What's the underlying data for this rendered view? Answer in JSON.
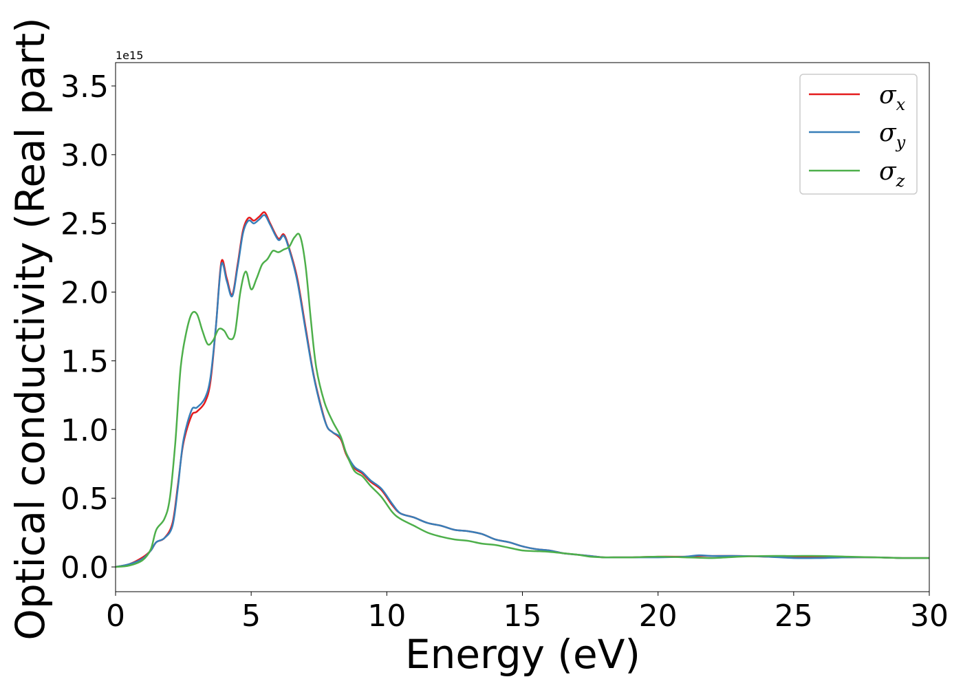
{
  "chart_data": {
    "type": "line",
    "xlabel": "Energy (eV)",
    "ylabel": "Optical conductivity (Real part)",
    "y_offset_label": "1e15",
    "y_multiplier": 1000000000000000.0,
    "xlim": [
      0,
      30
    ],
    "ylim": [
      -0.18,
      3.67
    ],
    "x_ticks": [
      0,
      5,
      10,
      15,
      20,
      25,
      30
    ],
    "x_tick_labels": [
      "0",
      "5",
      "10",
      "15",
      "20",
      "25",
      "30"
    ],
    "y_ticks": [
      0.0,
      0.5,
      1.0,
      1.5,
      2.0,
      2.5,
      3.0,
      3.5
    ],
    "y_tick_labels": [
      "0.0",
      "0.5",
      "1.0",
      "1.5",
      "2.0",
      "2.5",
      "3.0",
      "3.5"
    ],
    "grid": false,
    "legend_position": "top-right",
    "series": [
      {
        "name": "σx",
        "base": "σ",
        "sub": "x",
        "color": "#e41a1c",
        "points": [
          [
            0,
            0
          ],
          [
            0.5,
            0.02
          ],
          [
            1.0,
            0.07
          ],
          [
            1.3,
            0.12
          ],
          [
            1.5,
            0.18
          ],
          [
            1.8,
            0.21
          ],
          [
            2.1,
            0.32
          ],
          [
            2.3,
            0.6
          ],
          [
            2.5,
            0.9
          ],
          [
            2.8,
            1.1
          ],
          [
            3.0,
            1.13
          ],
          [
            3.3,
            1.2
          ],
          [
            3.5,
            1.35
          ],
          [
            3.7,
            1.75
          ],
          [
            3.9,
            2.22
          ],
          [
            4.1,
            2.1
          ],
          [
            4.3,
            1.98
          ],
          [
            4.5,
            2.2
          ],
          [
            4.7,
            2.45
          ],
          [
            4.9,
            2.54
          ],
          [
            5.1,
            2.52
          ],
          [
            5.3,
            2.55
          ],
          [
            5.5,
            2.58
          ],
          [
            5.7,
            2.5
          ],
          [
            6.0,
            2.39
          ],
          [
            6.2,
            2.42
          ],
          [
            6.4,
            2.32
          ],
          [
            6.7,
            2.1
          ],
          [
            7.0,
            1.75
          ],
          [
            7.3,
            1.4
          ],
          [
            7.6,
            1.15
          ],
          [
            7.8,
            1.02
          ],
          [
            8.0,
            0.98
          ],
          [
            8.3,
            0.93
          ],
          [
            8.5,
            0.82
          ],
          [
            8.8,
            0.72
          ],
          [
            9.1,
            0.68
          ],
          [
            9.4,
            0.62
          ],
          [
            9.8,
            0.56
          ],
          [
            10.2,
            0.45
          ],
          [
            10.5,
            0.39
          ],
          [
            11.0,
            0.36
          ],
          [
            11.5,
            0.32
          ],
          [
            12.0,
            0.3
          ],
          [
            12.5,
            0.27
          ],
          [
            13.0,
            0.26
          ],
          [
            13.5,
            0.24
          ],
          [
            14.0,
            0.2
          ],
          [
            14.5,
            0.18
          ],
          [
            15.0,
            0.15
          ],
          [
            15.5,
            0.13
          ],
          [
            16.0,
            0.12
          ],
          [
            16.5,
            0.1
          ],
          [
            17.0,
            0.09
          ],
          [
            17.5,
            0.08
          ],
          [
            18.0,
            0.07
          ],
          [
            18.5,
            0.07
          ],
          [
            19.0,
            0.07
          ],
          [
            20.0,
            0.075
          ],
          [
            21.0,
            0.075
          ],
          [
            21.5,
            0.08
          ],
          [
            22.0,
            0.08
          ],
          [
            23.0,
            0.08
          ],
          [
            24.0,
            0.075
          ],
          [
            25.0,
            0.07
          ],
          [
            26.0,
            0.07
          ],
          [
            27.0,
            0.07
          ],
          [
            28.0,
            0.07
          ],
          [
            29.0,
            0.065
          ],
          [
            30.0,
            0.065
          ]
        ]
      },
      {
        "name": "σy",
        "base": "σ",
        "sub": "y",
        "color": "#377eb8",
        "points": [
          [
            0,
            0
          ],
          [
            0.5,
            0.02
          ],
          [
            1.0,
            0.06
          ],
          [
            1.3,
            0.12
          ],
          [
            1.5,
            0.18
          ],
          [
            1.8,
            0.21
          ],
          [
            2.1,
            0.3
          ],
          [
            2.3,
            0.58
          ],
          [
            2.5,
            0.92
          ],
          [
            2.8,
            1.14
          ],
          [
            3.0,
            1.16
          ],
          [
            3.3,
            1.23
          ],
          [
            3.5,
            1.38
          ],
          [
            3.7,
            1.75
          ],
          [
            3.9,
            2.2
          ],
          [
            4.1,
            2.08
          ],
          [
            4.3,
            1.97
          ],
          [
            4.5,
            2.18
          ],
          [
            4.7,
            2.43
          ],
          [
            4.9,
            2.52
          ],
          [
            5.1,
            2.5
          ],
          [
            5.3,
            2.53
          ],
          [
            5.5,
            2.56
          ],
          [
            5.7,
            2.49
          ],
          [
            6.0,
            2.38
          ],
          [
            6.2,
            2.41
          ],
          [
            6.4,
            2.31
          ],
          [
            6.7,
            2.08
          ],
          [
            7.0,
            1.73
          ],
          [
            7.3,
            1.39
          ],
          [
            7.6,
            1.14
          ],
          [
            7.8,
            1.02
          ],
          [
            8.0,
            0.98
          ],
          [
            8.3,
            0.94
          ],
          [
            8.5,
            0.83
          ],
          [
            8.8,
            0.73
          ],
          [
            9.1,
            0.69
          ],
          [
            9.4,
            0.63
          ],
          [
            9.8,
            0.57
          ],
          [
            10.2,
            0.46
          ],
          [
            10.5,
            0.39
          ],
          [
            11.0,
            0.36
          ],
          [
            11.5,
            0.32
          ],
          [
            12.0,
            0.3
          ],
          [
            12.5,
            0.27
          ],
          [
            13.0,
            0.26
          ],
          [
            13.5,
            0.24
          ],
          [
            14.0,
            0.2
          ],
          [
            14.5,
            0.18
          ],
          [
            15.0,
            0.15
          ],
          [
            15.5,
            0.13
          ],
          [
            16.0,
            0.12
          ],
          [
            16.5,
            0.1
          ],
          [
            17.0,
            0.09
          ],
          [
            17.5,
            0.08
          ],
          [
            18.0,
            0.07
          ],
          [
            18.5,
            0.07
          ],
          [
            19.0,
            0.07
          ],
          [
            20.0,
            0.07
          ],
          [
            21.0,
            0.075
          ],
          [
            21.5,
            0.085
          ],
          [
            22.0,
            0.08
          ],
          [
            23.0,
            0.08
          ],
          [
            24.0,
            0.075
          ],
          [
            25.0,
            0.065
          ],
          [
            26.0,
            0.065
          ],
          [
            27.0,
            0.07
          ],
          [
            28.0,
            0.07
          ],
          [
            29.0,
            0.065
          ],
          [
            30.0,
            0.065
          ]
        ]
      },
      {
        "name": "σz",
        "base": "σ",
        "sub": "z",
        "color": "#4daf4a",
        "points": [
          [
            0,
            0
          ],
          [
            0.5,
            0.01
          ],
          [
            1.0,
            0.05
          ],
          [
            1.3,
            0.13
          ],
          [
            1.5,
            0.27
          ],
          [
            1.8,
            0.35
          ],
          [
            2.0,
            0.5
          ],
          [
            2.2,
            0.9
          ],
          [
            2.4,
            1.45
          ],
          [
            2.6,
            1.7
          ],
          [
            2.8,
            1.84
          ],
          [
            3.0,
            1.84
          ],
          [
            3.2,
            1.72
          ],
          [
            3.4,
            1.62
          ],
          [
            3.6,
            1.65
          ],
          [
            3.8,
            1.73
          ],
          [
            4.0,
            1.72
          ],
          [
            4.2,
            1.66
          ],
          [
            4.4,
            1.7
          ],
          [
            4.6,
            2.0
          ],
          [
            4.8,
            2.15
          ],
          [
            5.0,
            2.02
          ],
          [
            5.2,
            2.1
          ],
          [
            5.4,
            2.2
          ],
          [
            5.6,
            2.24
          ],
          [
            5.8,
            2.3
          ],
          [
            6.0,
            2.29
          ],
          [
            6.2,
            2.31
          ],
          [
            6.4,
            2.33
          ],
          [
            6.6,
            2.4
          ],
          [
            6.8,
            2.41
          ],
          [
            7.0,
            2.2
          ],
          [
            7.2,
            1.8
          ],
          [
            7.4,
            1.45
          ],
          [
            7.7,
            1.2
          ],
          [
            8.0,
            1.06
          ],
          [
            8.3,
            0.95
          ],
          [
            8.5,
            0.83
          ],
          [
            8.8,
            0.7
          ],
          [
            9.1,
            0.66
          ],
          [
            9.4,
            0.59
          ],
          [
            9.8,
            0.51
          ],
          [
            10.2,
            0.4
          ],
          [
            10.5,
            0.35
          ],
          [
            11.0,
            0.3
          ],
          [
            11.5,
            0.25
          ],
          [
            12.0,
            0.22
          ],
          [
            12.5,
            0.2
          ],
          [
            13.0,
            0.19
          ],
          [
            13.5,
            0.17
          ],
          [
            14.0,
            0.16
          ],
          [
            14.5,
            0.14
          ],
          [
            15.0,
            0.12
          ],
          [
            15.5,
            0.115
          ],
          [
            16.0,
            0.11
          ],
          [
            16.5,
            0.1
          ],
          [
            17.0,
            0.09
          ],
          [
            17.5,
            0.075
          ],
          [
            18.0,
            0.07
          ],
          [
            18.5,
            0.07
          ],
          [
            19.0,
            0.07
          ],
          [
            20.0,
            0.075
          ],
          [
            21.0,
            0.07
          ],
          [
            22.0,
            0.065
          ],
          [
            23.0,
            0.075
          ],
          [
            24.0,
            0.08
          ],
          [
            25.0,
            0.08
          ],
          [
            26.0,
            0.08
          ],
          [
            27.0,
            0.075
          ],
          [
            28.0,
            0.07
          ],
          [
            29.0,
            0.065
          ],
          [
            30.0,
            0.065
          ]
        ]
      }
    ]
  }
}
